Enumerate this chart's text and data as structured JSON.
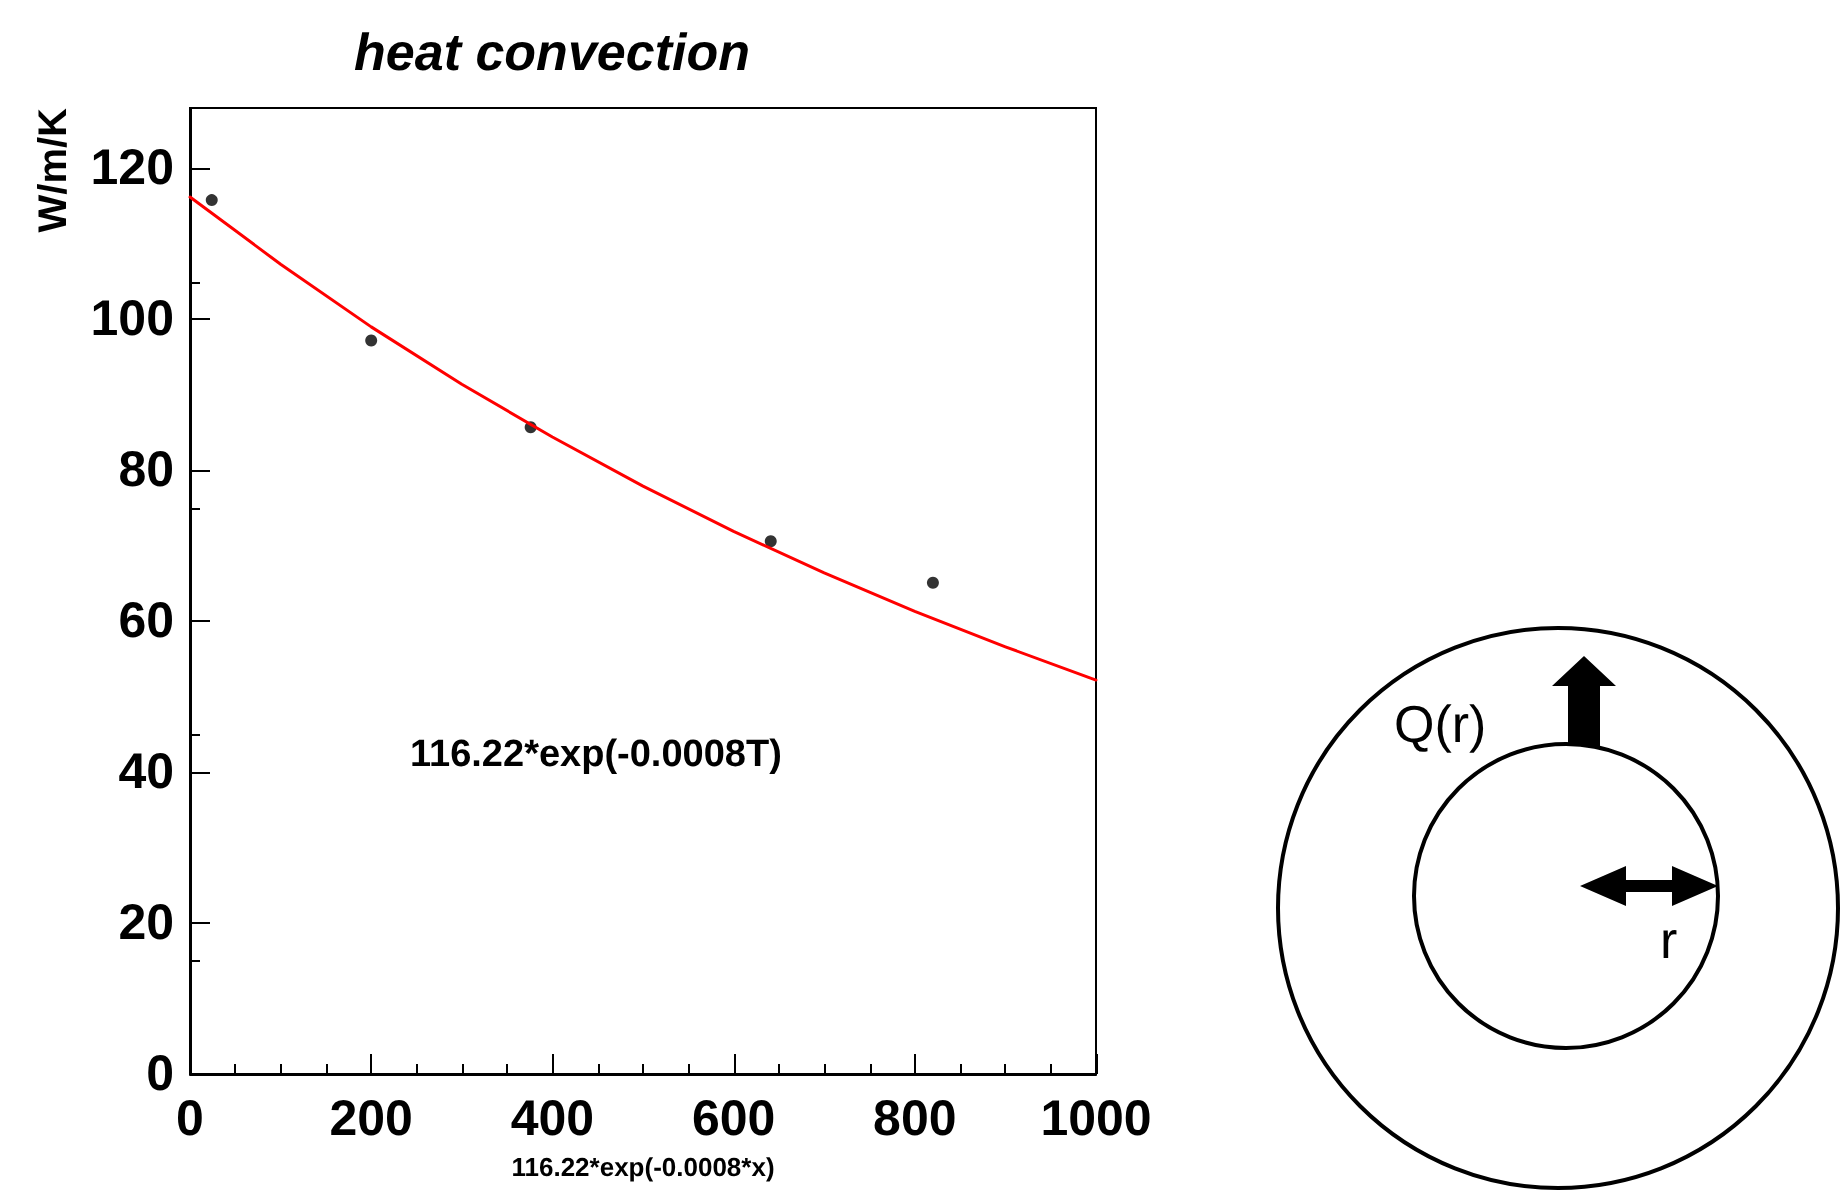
{
  "chart_data": {
    "type": "scatter",
    "title": "heat convection",
    "xlabel": "116.22*exp(-0.0008*x)",
    "ylabel": "W/m/K",
    "annotations": [
      "116.22*exp(-0.0008T)",
      "Q(r)",
      "r"
    ],
    "xlim": [
      0,
      1000
    ],
    "xticks": [
      0,
      200,
      400,
      600,
      800,
      1000
    ],
    "ylim": [
      0,
      128
    ],
    "yticks": [
      0,
      20,
      40,
      60,
      80,
      100,
      120
    ],
    "grid": false,
    "marker": "circle",
    "series": [
      {
        "color": "#000000",
        "x": [
          24,
          200,
          376,
          641,
          820
        ],
        "values": [
          115.8,
          97.2,
          85.7,
          70.6,
          65.1
        ]
      },
      {
        "type": "line",
        "color": "#ff0000",
        "marker": "none",
        "x": [
          0,
          100,
          200,
          300,
          400,
          500,
          600,
          700,
          800,
          900,
          1000
        ],
        "values": [
          116.2,
          107.3,
          99.0,
          91.4,
          84.4,
          77.9,
          71.9,
          66.4,
          61.3,
          56.6,
          52.2
        ]
      }
    ]
  }
}
